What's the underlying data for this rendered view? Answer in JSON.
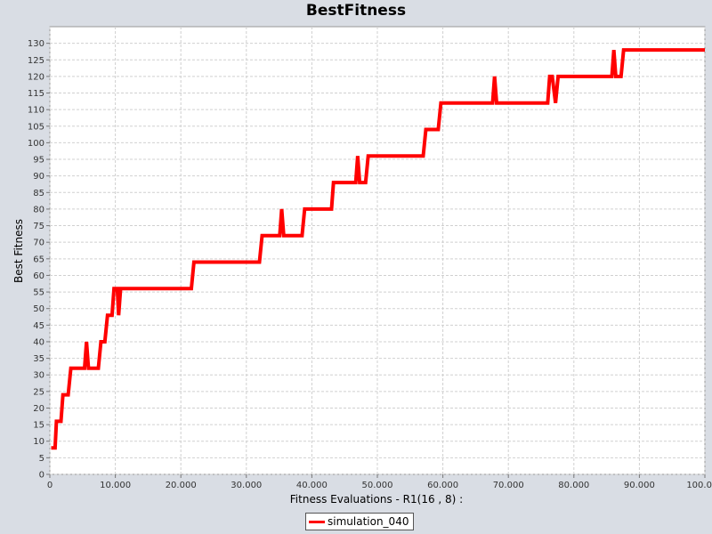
{
  "chart_data": {
    "type": "line",
    "title": "BestFitness",
    "xlabel": "Fitness Evaluations - R1(16 , 8) :",
    "ylabel": "Best Fitness",
    "xlim": [
      0,
      100000
    ],
    "ylim": [
      0,
      135
    ],
    "x_ticks": [
      0,
      10000,
      20000,
      30000,
      40000,
      50000,
      60000,
      70000,
      80000,
      90000,
      100000
    ],
    "x_tick_labels": [
      "0",
      "10.000",
      "20.000",
      "30.000",
      "40.000",
      "50.000",
      "60.000",
      "70.000",
      "80.000",
      "90.000",
      "100.000"
    ],
    "y_ticks": [
      0,
      5,
      10,
      15,
      20,
      25,
      30,
      35,
      40,
      45,
      50,
      55,
      60,
      65,
      70,
      75,
      80,
      85,
      90,
      95,
      100,
      105,
      110,
      115,
      120,
      125,
      130
    ],
    "grid": true,
    "legend_position": "bottom-center",
    "series": [
      {
        "name": "simulation_040",
        "color": "#ff0000",
        "x": [
          200,
          800,
          1000,
          1700,
          2000,
          2800,
          3200,
          5300,
          5600,
          5900,
          7400,
          7800,
          8400,
          8800,
          9500,
          9800,
          10300,
          10500,
          10800,
          21600,
          22000,
          32000,
          32400,
          35100,
          35400,
          35700,
          38500,
          38900,
          43000,
          43300,
          46700,
          47000,
          47300,
          48200,
          48600,
          57000,
          57400,
          59300,
          59700,
          67600,
          67900,
          68200,
          76000,
          76300,
          76700,
          77200,
          77600,
          85800,
          86100,
          86400,
          87200,
          87600,
          100000
        ],
        "y": [
          8,
          8,
          16,
          16,
          24,
          24,
          32,
          32,
          40,
          32,
          32,
          40,
          40,
          48,
          48,
          56,
          56,
          48,
          56,
          56,
          64,
          64,
          72,
          72,
          80,
          72,
          72,
          80,
          80,
          88,
          88,
          96,
          88,
          88,
          96,
          96,
          104,
          104,
          112,
          112,
          120,
          112,
          112,
          120,
          120,
          112,
          120,
          120,
          128,
          120,
          120,
          128,
          128
        ]
      }
    ]
  }
}
